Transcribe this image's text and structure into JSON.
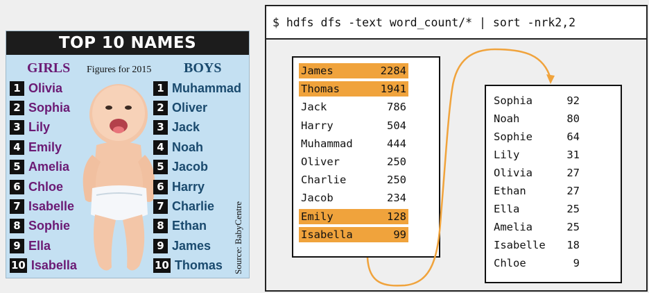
{
  "poster": {
    "title": "TOP 10 NAMES",
    "girls_header": "GIRLS",
    "boys_header": "BOYS",
    "figures_label": "Figures for 2015",
    "source": "Source: BabyCentre",
    "girls": [
      {
        "rank": "1",
        "name": "Olivia"
      },
      {
        "rank": "2",
        "name": "Sophia"
      },
      {
        "rank": "3",
        "name": "Lily"
      },
      {
        "rank": "4",
        "name": "Emily"
      },
      {
        "rank": "5",
        "name": "Amelia"
      },
      {
        "rank": "6",
        "name": "Chloe"
      },
      {
        "rank": "7",
        "name": "Isabelle"
      },
      {
        "rank": "8",
        "name": "Sophie"
      },
      {
        "rank": "9",
        "name": "Ella"
      },
      {
        "rank": "10",
        "name": "Isabella"
      }
    ],
    "boys": [
      {
        "rank": "1",
        "name": "Muhammad"
      },
      {
        "rank": "2",
        "name": "Oliver"
      },
      {
        "rank": "3",
        "name": "Jack"
      },
      {
        "rank": "4",
        "name": "Noah"
      },
      {
        "rank": "5",
        "name": "Jacob"
      },
      {
        "rank": "6",
        "name": "Harry"
      },
      {
        "rank": "7",
        "name": "Charlie"
      },
      {
        "rank": "8",
        "name": "Ethan"
      },
      {
        "rank": "9",
        "name": "James"
      },
      {
        "rank": "10",
        "name": "Thomas"
      }
    ]
  },
  "terminal": {
    "command": "$ hdfs dfs -text word_count/* | sort -nrk2,2",
    "highlight_color": "#f0a33c",
    "unsorted": [
      {
        "word": "James",
        "count": "2284",
        "highlight": true
      },
      {
        "word": "Thomas",
        "count": "1941",
        "highlight": true
      },
      {
        "word": "Jack",
        "count": "786",
        "highlight": false
      },
      {
        "word": "Harry",
        "count": "504",
        "highlight": false
      },
      {
        "word": "Muhammad",
        "count": "444",
        "highlight": false
      },
      {
        "word": "Oliver",
        "count": "250",
        "highlight": false
      },
      {
        "word": "Charlie",
        "count": "250",
        "highlight": false
      },
      {
        "word": "Jacob",
        "count": "234",
        "highlight": false
      },
      {
        "word": "Emily",
        "count": "128",
        "highlight": true
      },
      {
        "word": "Isabella",
        "count": "99",
        "highlight": true
      }
    ],
    "sorted": [
      {
        "word": "Sophia",
        "count": "92"
      },
      {
        "word": "Noah",
        "count": "80"
      },
      {
        "word": "Sophie",
        "count": "64"
      },
      {
        "word": "Lily",
        "count": "31"
      },
      {
        "word": "Olivia",
        "count": "27"
      },
      {
        "word": "Ethan",
        "count": "27"
      },
      {
        "word": "Ella",
        "count": "25"
      },
      {
        "word": "Amelia",
        "count": "25"
      },
      {
        "word": "Isabelle",
        "count": "18"
      },
      {
        "word": "Chloe",
        "count": "9"
      }
    ]
  }
}
